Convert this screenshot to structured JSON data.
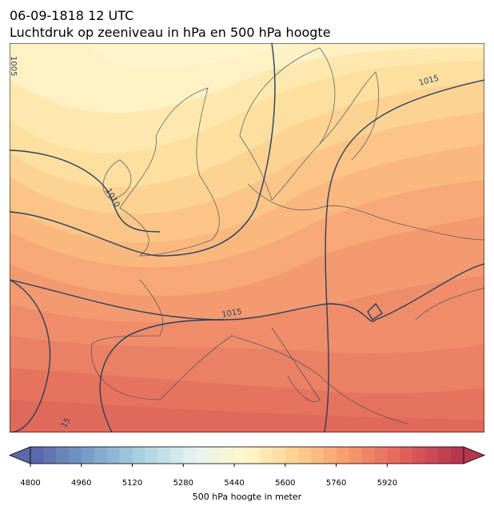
{
  "header": {
    "date": "06-09-1818 12 UTC",
    "title": "Luchtdruk op zeeniveau in hPa en 500 hPa hoogte"
  },
  "isobar_labels": [
    "1005",
    "1010",
    "1015",
    "1015",
    "15"
  ],
  "colorbar": {
    "label": "500 hPa hoogte in meter",
    "range": [
      4800,
      6160
    ],
    "ticks": [
      4800,
      4960,
      5120,
      5280,
      5440,
      5600,
      5760,
      5920
    ]
  }
}
